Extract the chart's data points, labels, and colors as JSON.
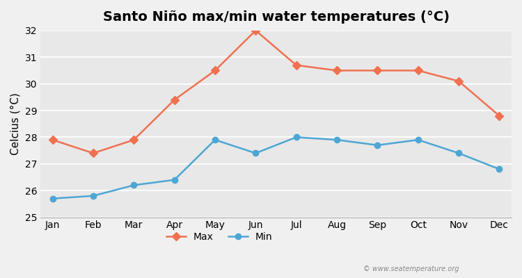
{
  "title": "Santo Niño max/min water temperatures (°C)",
  "ylabel": "Celcius (°C)",
  "months": [
    "Jan",
    "Feb",
    "Mar",
    "Apr",
    "May",
    "Jun",
    "Jul",
    "Aug",
    "Sep",
    "Oct",
    "Nov",
    "Dec"
  ],
  "max_temps": [
    27.9,
    27.4,
    27.9,
    29.4,
    30.5,
    32.0,
    30.7,
    30.5,
    30.5,
    30.5,
    30.1,
    28.8
  ],
  "min_temps": [
    25.7,
    25.8,
    26.2,
    26.4,
    27.9,
    27.4,
    28.0,
    27.9,
    27.7,
    27.9,
    27.4,
    26.8
  ],
  "max_color": "#f07050",
  "min_color": "#4da6d4",
  "ylim": [
    25,
    32
  ],
  "yticks": [
    25,
    26,
    27,
    28,
    29,
    30,
    31,
    32
  ],
  "background_color": "#f0f0f0",
  "plot_bg_color": "#e8e8e8",
  "grid_color": "#ffffff",
  "watermark": "© www.seatemperature.org",
  "title_fontsize": 14,
  "axis_label_fontsize": 11,
  "tick_fontsize": 10
}
